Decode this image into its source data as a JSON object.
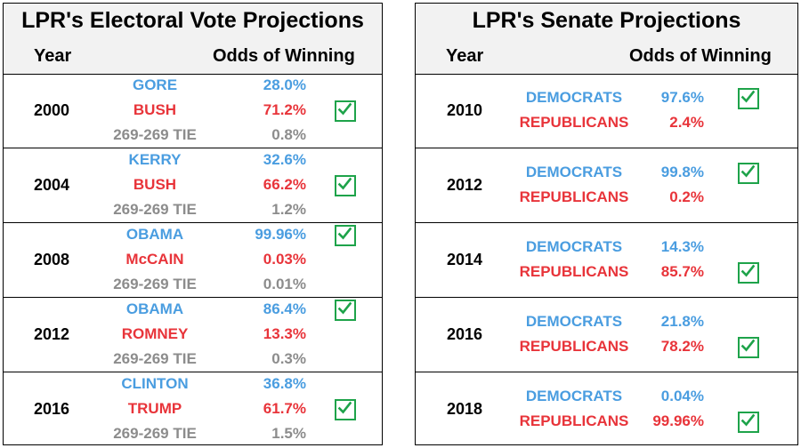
{
  "electoral": {
    "title": "LPR's Electoral Vote Projections",
    "col_year": "Year",
    "col_odds": "Odds of Winning",
    "rows": [
      {
        "year": "2000",
        "entries": [
          {
            "name": "GORE",
            "pct": "28.0%",
            "party": "dem",
            "winner": false
          },
          {
            "name": "BUSH",
            "pct": "71.2%",
            "party": "rep",
            "winner": true
          },
          {
            "name": "269-269 TIE",
            "pct": "0.8%",
            "party": "tie",
            "winner": false
          }
        ]
      },
      {
        "year": "2004",
        "entries": [
          {
            "name": "KERRY",
            "pct": "32.6%",
            "party": "dem",
            "winner": false
          },
          {
            "name": "BUSH",
            "pct": "66.2%",
            "party": "rep",
            "winner": true
          },
          {
            "name": "269-269 TIE",
            "pct": "1.2%",
            "party": "tie",
            "winner": false
          }
        ]
      },
      {
        "year": "2008",
        "entries": [
          {
            "name": "OBAMA",
            "pct": "99.96%",
            "party": "dem",
            "winner": true
          },
          {
            "name": "McCAIN",
            "pct": "0.03%",
            "party": "rep",
            "winner": false
          },
          {
            "name": "269-269 TIE",
            "pct": "0.01%",
            "party": "tie",
            "winner": false
          }
        ]
      },
      {
        "year": "2012",
        "entries": [
          {
            "name": "OBAMA",
            "pct": "86.4%",
            "party": "dem",
            "winner": true
          },
          {
            "name": "ROMNEY",
            "pct": "13.3%",
            "party": "rep",
            "winner": false
          },
          {
            "name": "269-269 TIE",
            "pct": "0.3%",
            "party": "tie",
            "winner": false
          }
        ]
      },
      {
        "year": "2016",
        "entries": [
          {
            "name": "CLINTON",
            "pct": "36.8%",
            "party": "dem",
            "winner": false
          },
          {
            "name": "TRUMP",
            "pct": "61.7%",
            "party": "rep",
            "winner": true
          },
          {
            "name": "269-269 TIE",
            "pct": "1.5%",
            "party": "tie",
            "winner": false
          }
        ]
      }
    ]
  },
  "senate": {
    "title": "LPR's Senate Projections",
    "col_year": "Year",
    "col_odds": "Odds of Winning",
    "rows": [
      {
        "year": "2010",
        "entries": [
          {
            "name": "DEMOCRATS",
            "pct": "97.6%",
            "party": "dem",
            "winner": true
          },
          {
            "name": "REPUBLICANS",
            "pct": "2.4%",
            "party": "rep",
            "winner": false
          }
        ]
      },
      {
        "year": "2012",
        "entries": [
          {
            "name": "DEMOCRATS",
            "pct": "99.8%",
            "party": "dem",
            "winner": true
          },
          {
            "name": "REPUBLICANS",
            "pct": "0.2%",
            "party": "rep",
            "winner": false
          }
        ]
      },
      {
        "year": "2014",
        "entries": [
          {
            "name": "DEMOCRATS",
            "pct": "14.3%",
            "party": "dem",
            "winner": false
          },
          {
            "name": "REPUBLICANS",
            "pct": "85.7%",
            "party": "rep",
            "winner": true
          }
        ]
      },
      {
        "year": "2016",
        "entries": [
          {
            "name": "DEMOCRATS",
            "pct": "21.8%",
            "party": "dem",
            "winner": false
          },
          {
            "name": "REPUBLICANS",
            "pct": "78.2%",
            "party": "rep",
            "winner": true
          }
        ]
      },
      {
        "year": "2018",
        "entries": [
          {
            "name": "DEMOCRATS",
            "pct": "0.04%",
            "party": "dem",
            "winner": false
          },
          {
            "name": "REPUBLICANS",
            "pct": "99.96%",
            "party": "rep",
            "winner": true
          }
        ]
      }
    ]
  },
  "colors": {
    "dem": "#4a9de0",
    "rep": "#e8343a",
    "tie": "#8c8c8c",
    "check": "#1ea34a"
  },
  "icons": {
    "winner": "checkbox-check-icon"
  }
}
